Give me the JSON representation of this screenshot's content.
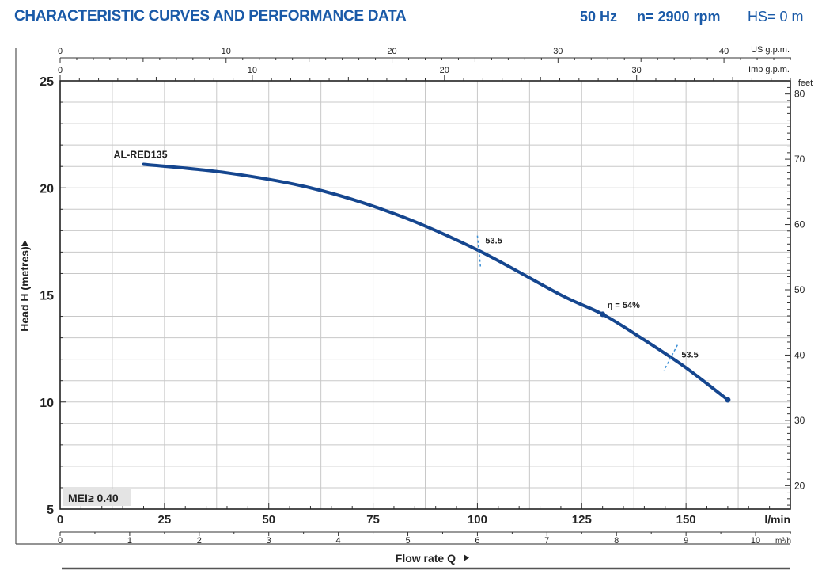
{
  "header": {
    "title": "CHARACTERISTIC CURVES AND PERFORMANCE DATA",
    "frequency": "50 Hz",
    "speed": "n= 2900 rpm",
    "hs": "HS= 0 m"
  },
  "colors": {
    "curve": "#15468f",
    "accent": "#1a5aa8",
    "grid": "#c8c8c8",
    "frame": "#222222",
    "efficiency_marks": "#3a8fd6",
    "mei_box": "#e4e4e4"
  },
  "chart_data": {
    "type": "line",
    "xlabel": "Flow rate Q",
    "ylabel": "Head H (metres)",
    "xlim": [
      0,
      175
    ],
    "ylim": [
      5,
      25
    ],
    "grid": true,
    "primary_x": {
      "unit": "l/min",
      "ticks": [
        "0",
        "25",
        "50",
        "75",
        "100",
        "125",
        "150"
      ]
    },
    "y_ticks": [
      "5",
      "10",
      "15",
      "20",
      "25"
    ],
    "secondary_axes": {
      "us_gpm": {
        "unit": "US g.p.m.",
        "max": 44,
        "labels": [
          "0",
          "10",
          "20",
          "30",
          "40"
        ]
      },
      "imp_gpm": {
        "unit": "Imp g.p.m.",
        "max": 38,
        "labels": [
          "0",
          "10",
          "20",
          "30"
        ]
      },
      "m3h": {
        "unit": "m³/h",
        "max": 10.5,
        "labels": [
          "0",
          "1",
          "2",
          "3",
          "4",
          "5",
          "6",
          "7",
          "8",
          "9",
          "10"
        ]
      },
      "feet": {
        "unit": "feet",
        "labels": [
          "20",
          "30",
          "40",
          "50",
          "60",
          "70",
          "80"
        ]
      }
    },
    "series": [
      {
        "name": "AL-RED135",
        "x": [
          20,
          40,
          60,
          80,
          100,
          120,
          130,
          140,
          150,
          160
        ],
        "y": [
          21.1,
          20.7,
          20.0,
          18.8,
          17.1,
          15.0,
          14.1,
          12.9,
          11.6,
          10.1
        ]
      }
    ],
    "annotations": [
      {
        "label": "53.5",
        "x": 100,
        "y": 17.1
      },
      {
        "label": "η = 54%",
        "x": 130,
        "y": 14.1
      },
      {
        "label": "53.5",
        "x": 147,
        "y": 12.0
      }
    ],
    "badge": "MEI≥ 0.40"
  }
}
